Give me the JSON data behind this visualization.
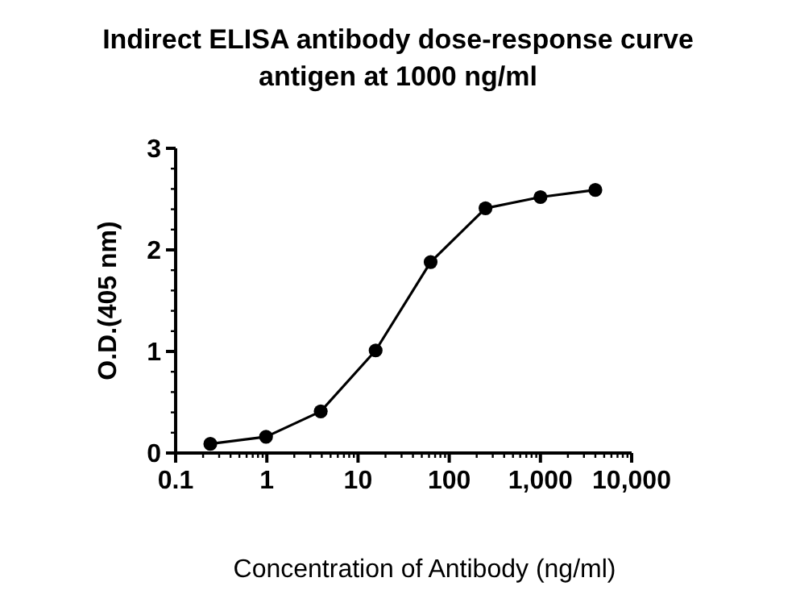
{
  "chart_data": {
    "type": "line",
    "title": "Indirect ELISA antibody dose-response curve\nantigen at 1000 ng/ml",
    "xlabel": "Concentration of Antibody (ng/ml)",
    "ylabel": "O.D.(405 nm)",
    "x": [
      0.24,
      0.98,
      3.9,
      15.6,
      62.5,
      250,
      1000,
      4000
    ],
    "series": [
      {
        "color": "#000000",
        "values": [
          0.09,
          0.16,
          0.41,
          1.01,
          1.88,
          2.41,
          2.52,
          2.59
        ]
      }
    ],
    "log": "x",
    "xlim": [
      0.1,
      10000
    ],
    "xticks": [
      0.1,
      1,
      10,
      100,
      {
        "value": 1000,
        "label": "1,000"
      },
      {
        "value": 10000,
        "label": "10,000"
      }
    ],
    "ylim": [
      0,
      3
    ],
    "yticks": [
      0,
      1,
      2,
      3
    ],
    "marker": "circle",
    "line_style": "solid"
  }
}
